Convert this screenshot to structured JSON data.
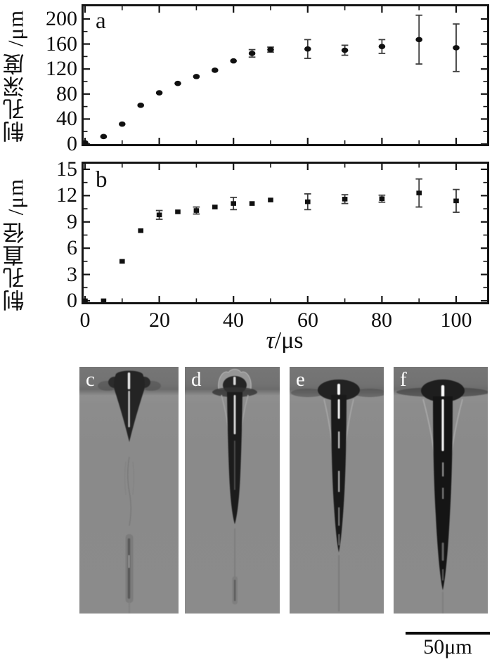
{
  "figure": {
    "panel_a": {
      "label": "a",
      "y_axis_label": "制孔深度 /μm"
    },
    "panel_b": {
      "label": "b",
      "y_axis_label": "制孔直径 /μm"
    },
    "x_axis": {
      "tau": "τ",
      "unit": "/μs",
      "full": "τ/μs"
    },
    "scale_bar": {
      "label": "50μm"
    },
    "photos": [
      {
        "label": "c"
      },
      {
        "label": "d"
      },
      {
        "label": "e"
      },
      {
        "label": "f"
      }
    ]
  },
  "chart_data": [
    {
      "type": "scatter",
      "panel": "a",
      "marker": "circle",
      "xlabel": "τ/μs",
      "ylabel": "制孔深度 /μm",
      "xlim": [
        0,
        108
      ],
      "ylim": [
        0,
        200
      ],
      "x_major_ticks": [
        0,
        20,
        40,
        60,
        80,
        100
      ],
      "x_minor_ticks": [
        10,
        30,
        50,
        70,
        90
      ],
      "y_major_ticks": [
        0,
        40,
        80,
        120,
        160,
        200
      ],
      "y_minor_ticks": [
        20,
        60,
        100,
        140,
        180
      ],
      "x": [
        0,
        5,
        10,
        15,
        20,
        25,
        30,
        35,
        40,
        45,
        50,
        60,
        70,
        80,
        90,
        100
      ],
      "y": [
        2,
        12,
        32,
        62,
        82,
        97,
        108,
        118,
        133,
        145,
        151,
        152,
        150,
        156,
        167,
        154
      ],
      "yerr": [
        0,
        0,
        0,
        0,
        0,
        0,
        0,
        0,
        0,
        6,
        4,
        15,
        8,
        11,
        39,
        38
      ]
    },
    {
      "type": "scatter",
      "panel": "b",
      "marker": "square",
      "xlabel": "τ/μs",
      "ylabel": "制孔直径 /μm",
      "xlim": [
        0,
        108
      ],
      "ylim": [
        0,
        15
      ],
      "x_major_ticks": [
        0,
        20,
        40,
        60,
        80,
        100
      ],
      "x_minor_ticks": [
        10,
        30,
        50,
        70,
        90
      ],
      "y_major_ticks": [
        0,
        3,
        6,
        9,
        12,
        15
      ],
      "y_minor_ticks": [
        1.5,
        4.5,
        7.5,
        10.5,
        13.5
      ],
      "x": [
        0,
        5,
        10,
        15,
        20,
        25,
        30,
        35,
        40,
        45,
        50,
        60,
        70,
        80,
        90,
        100
      ],
      "y": [
        0,
        0,
        4.5,
        8.0,
        9.8,
        10.15,
        10.3,
        10.7,
        11.1,
        11.1,
        11.5,
        11.3,
        11.6,
        11.65,
        12.3,
        11.4
      ],
      "yerr": [
        0,
        0,
        0,
        0,
        0.5,
        0,
        0.4,
        0,
        0.7,
        0,
        0,
        0.9,
        0.5,
        0.4,
        1.6,
        1.3
      ]
    }
  ]
}
